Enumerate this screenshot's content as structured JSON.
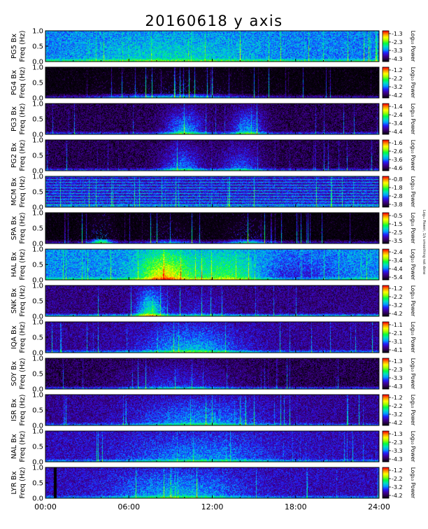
{
  "chart_data": {
    "type": "heatmap",
    "title": "20160618 y axis",
    "side_note": "Log₁₀ Power, 1/s smoothing not done",
    "xlabels_time": [
      "00:00",
      "06:00",
      "12:00",
      "18:00",
      "24:00"
    ],
    "xlim_hours": [
      0,
      24
    ],
    "ylim_hz": [
      0,
      1.0
    ],
    "yticks": [
      "0.0",
      "0.5",
      "1.0"
    ],
    "ylabel_suffix": "Bx",
    "ylabel_freq": "Freq (Hz)",
    "colorbar_label": "Log₁₀ Power",
    "colormap": [
      "#000000",
      "#2a0050",
      "#3f00a0",
      "#2020ff",
      "#00a0ff",
      "#00e0c0",
      "#00ff40",
      "#a0ff00",
      "#ffff00",
      "#ff9000",
      "#ff0000"
    ],
    "panels": [
      {
        "station": "PG5",
        "ticks": [
          "-1.3",
          "-2.3",
          "-3.3",
          "-4.3"
        ],
        "base": 0.38,
        "floor_level": 0.62
      },
      {
        "station": "PG4",
        "ticks": [
          "-1.2",
          "-2.2",
          "-3.2",
          "-4.2"
        ],
        "base": 0.03,
        "floor_level": 0.3
      },
      {
        "station": "PG3",
        "ticks": [
          "-1.4",
          "-2.4",
          "-3.4",
          "-4.4"
        ],
        "base": 0.1,
        "floor_level": 0.4
      },
      {
        "station": "PG2",
        "ticks": [
          "-1.6",
          "-2.6",
          "-3.6",
          "-4.6"
        ],
        "base": 0.1,
        "floor_level": 0.4
      },
      {
        "station": "MCM",
        "ticks": [
          "-0.8",
          "-1.8",
          "-2.8",
          "-3.8"
        ],
        "base": 0.22,
        "floor_level": 0.4
      },
      {
        "station": "SPA",
        "ticks": [
          "-0.5",
          "-1.5",
          "-2.5",
          "-3.5"
        ],
        "base": 0.03,
        "floor_level": 0.3
      },
      {
        "station": "HAL",
        "ticks": [
          "-2.4",
          "-3.4",
          "-4.4",
          "-5.4"
        ],
        "base": 0.4,
        "floor_level": 0.6
      },
      {
        "station": "SNK",
        "ticks": [
          "-1.2",
          "-2.2",
          "-3.2",
          "-4.2"
        ],
        "base": 0.16,
        "floor_level": 0.55
      },
      {
        "station": "IQA",
        "ticks": [
          "-1.1",
          "-2.1",
          "-3.1",
          "-4.1"
        ],
        "base": 0.18,
        "floor_level": 0.45
      },
      {
        "station": "SOY",
        "ticks": [
          "-1.3",
          "-2.3",
          "-3.3",
          "-4.3"
        ],
        "base": 0.1,
        "floor_level": 0.4
      },
      {
        "station": "ISR",
        "ticks": [
          "-1.2",
          "-2.2",
          "-3.2",
          "-4.2"
        ],
        "base": 0.18,
        "floor_level": 0.4
      },
      {
        "station": "NAL",
        "ticks": [
          "-1.3",
          "-2.3",
          "-3.3",
          "-4.3"
        ],
        "base": 0.22,
        "floor_level": 0.45
      },
      {
        "station": "LYR",
        "ticks": [
          "-1.2",
          "-2.2",
          "-3.2",
          "-4.2"
        ],
        "base": 0.22,
        "floor_level": 0.45
      }
    ]
  }
}
